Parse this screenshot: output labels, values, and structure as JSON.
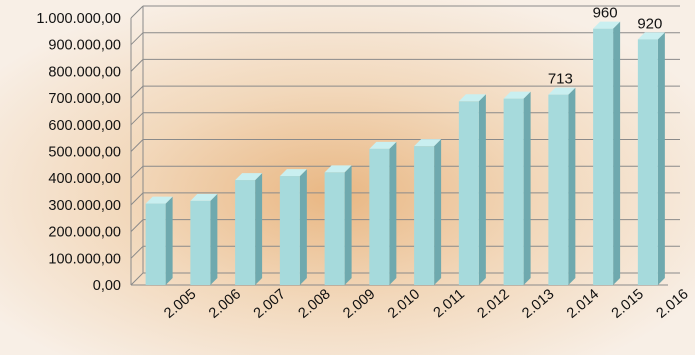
{
  "chart_data": {
    "type": "bar",
    "categories": [
      "2.005",
      "2.006",
      "2.007",
      "2.008",
      "2.009",
      "2.010",
      "2.011",
      "2.012",
      "2.013",
      "2.014",
      "2.015",
      "2.016"
    ],
    "values": [
      305000,
      315000,
      393000,
      408000,
      422000,
      510000,
      520000,
      688000,
      698000,
      713000,
      960000,
      920000
    ],
    "data_labels": [
      "",
      "",
      "",
      "",
      "",
      "",
      "",
      "",
      "",
      "713",
      "960",
      "920"
    ],
    "y_ticks": [
      0,
      100000,
      200000,
      300000,
      400000,
      500000,
      600000,
      700000,
      800000,
      900000,
      1000000
    ],
    "y_tick_labels": [
      "0,00",
      "100.000,00",
      "200.000,00",
      "300.000,00",
      "400.000,00",
      "500.000,00",
      "600.000,00",
      "700.000,00",
      "800.000,00",
      "900.000,00",
      "1.000.000,00"
    ],
    "ylim": [
      0,
      1000000
    ],
    "grid": true,
    "title": "",
    "xlabel": "",
    "ylabel": "",
    "colors": {
      "bar_front": "#a6dadc",
      "bar_side": "#6fa9ae",
      "bar_top": "#c9eff0",
      "grid": "#8a8a8a",
      "text": "#111111"
    }
  }
}
